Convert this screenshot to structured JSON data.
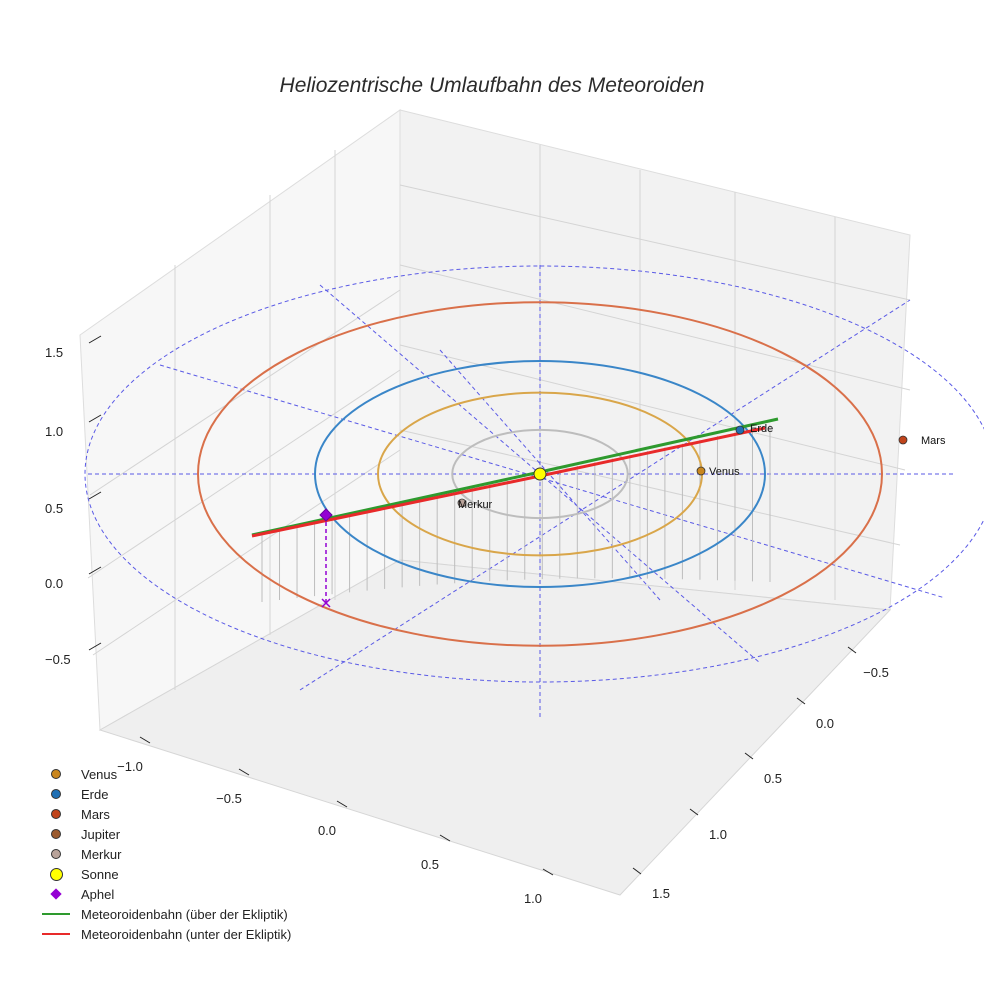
{
  "chart_data": {
    "type": "3d-line",
    "title": "Heliozentrische Umlaufbahn des Meteoroiden",
    "axes": {
      "x_ticks": [
        "−1.0",
        "−0.5",
        "0.0",
        "0.5",
        "1.0"
      ],
      "y_ticks": [
        "−0.5",
        "0.0",
        "0.5",
        "1.0",
        "1.5"
      ],
      "z_ticks": [
        "−0.5",
        "0.0",
        "0.5",
        "1.0",
        "1.5"
      ],
      "grid": true
    },
    "orbits": [
      {
        "name": "Merkur",
        "radius_au": 0.39,
        "color": "#bdbdbd"
      },
      {
        "name": "Venus",
        "radius_au": 0.72,
        "color": "#d9a64a"
      },
      {
        "name": "Erde",
        "radius_au": 1.0,
        "color": "#3a86c8"
      },
      {
        "name": "Mars",
        "radius_au": 1.52,
        "color": "#d9704a"
      }
    ],
    "planets": [
      {
        "name": "Venus",
        "label": "Venus",
        "color": "#c9861e"
      },
      {
        "name": "Erde",
        "label": "Erde",
        "color": "#1f6fb4"
      },
      {
        "name": "Mars",
        "label": "Mars",
        "color": "#c0441c"
      },
      {
        "name": "Jupiter",
        "label": "",
        "color": "#9b5a2e"
      },
      {
        "name": "Merkur",
        "label": "Merkur",
        "color": "#b9a39a"
      }
    ],
    "sun": {
      "name": "Sonne",
      "color": "#ffff00"
    },
    "aphel": {
      "name": "Aphel",
      "color": "#9400d3"
    },
    "series": [
      {
        "name": "Meteoroidenbahn (über der Ekliptik)",
        "color": "#2e9a2e"
      },
      {
        "name": "Meteoroidenbahn (unter der Ekliptik)",
        "color": "#e82a2a"
      }
    ]
  },
  "legend": [
    {
      "label": "Venus",
      "kind": "dot",
      "color": "#c9861e"
    },
    {
      "label": "Erde",
      "kind": "dot",
      "color": "#1f6fb4"
    },
    {
      "label": "Mars",
      "kind": "dot",
      "color": "#c0441c"
    },
    {
      "label": "Jupiter",
      "kind": "dot",
      "color": "#9b5a2e"
    },
    {
      "label": "Merkur",
      "kind": "dot",
      "color": "#b9a39a"
    },
    {
      "label": "Sonne",
      "kind": "sun",
      "color": "#ffff00"
    },
    {
      "label": "Aphel",
      "kind": "diamond",
      "color": "#9400d3"
    },
    {
      "label": "Meteoroidenbahn (über der Ekliptik)",
      "kind": "line",
      "color": "#2e9a2e"
    },
    {
      "label": "Meteoroidenbahn (unter der Ekliptik)",
      "kind": "line",
      "color": "#e82a2a"
    }
  ]
}
